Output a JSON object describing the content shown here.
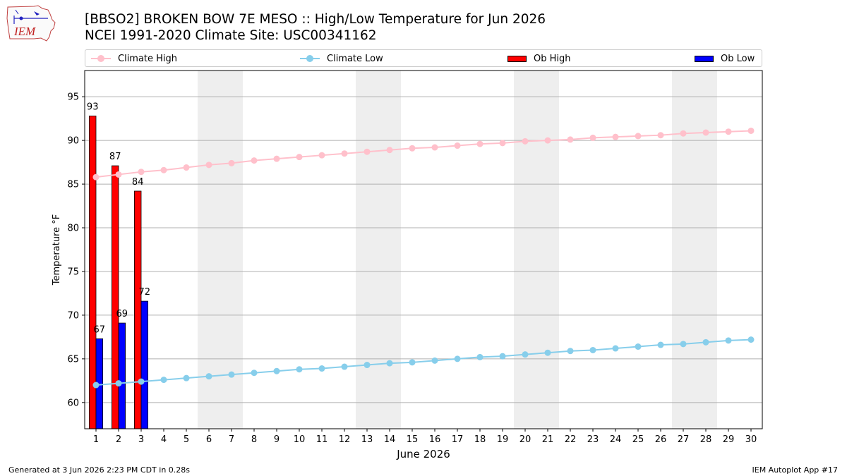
{
  "logo": {
    "text": "IEM"
  },
  "header": {
    "title": "[BBSO2] BROKEN BOW 7E MESO :: High/Low Temperature for Jun 2026",
    "subtitle": "NCEI 1991-2020 Climate Site: USC00341162"
  },
  "legend": {
    "climate_high": "Climate High",
    "climate_low": "Climate Low",
    "ob_high": "Ob High",
    "ob_low": "Ob Low"
  },
  "colors": {
    "climate_high": "#ffc0cb",
    "climate_low": "#87ceeb",
    "ob_high": "#ff0000",
    "ob_low": "#0000ff",
    "weekend_shade": "#eeeeee",
    "grid": "#b0b0b0"
  },
  "chart_data": {
    "type": "bar",
    "xlabel": "June 2026",
    "ylabel": "Temperature °F",
    "xlim": [
      0.5,
      30.5
    ],
    "ylim": [
      57,
      98
    ],
    "yticks": [
      60,
      65,
      70,
      75,
      80,
      85,
      90,
      95
    ],
    "x": [
      1,
      2,
      3,
      4,
      5,
      6,
      7,
      8,
      9,
      10,
      11,
      12,
      13,
      14,
      15,
      16,
      17,
      18,
      19,
      20,
      21,
      22,
      23,
      24,
      25,
      26,
      27,
      28,
      29,
      30
    ],
    "weekend_spans": [
      [
        5.5,
        7.5
      ],
      [
        12.5,
        14.5
      ],
      [
        19.5,
        21.5
      ],
      [
        26.5,
        28.5
      ]
    ],
    "grid": "horizontal",
    "series": [
      {
        "name": "Climate High",
        "type": "line",
        "values": [
          85.8,
          86.1,
          86.4,
          86.6,
          86.9,
          87.2,
          87.4,
          87.7,
          87.9,
          88.1,
          88.3,
          88.5,
          88.7,
          88.9,
          89.1,
          89.2,
          89.4,
          89.6,
          89.7,
          89.9,
          90.0,
          90.1,
          90.3,
          90.4,
          90.5,
          90.6,
          90.8,
          90.9,
          91.0,
          91.1
        ]
      },
      {
        "name": "Climate Low",
        "type": "line",
        "values": [
          62.0,
          62.2,
          62.4,
          62.6,
          62.8,
          63.0,
          63.2,
          63.4,
          63.6,
          63.8,
          63.9,
          64.1,
          64.3,
          64.5,
          64.6,
          64.8,
          65.0,
          65.2,
          65.3,
          65.5,
          65.7,
          65.9,
          66.0,
          66.2,
          66.4,
          66.6,
          66.7,
          66.9,
          67.1,
          67.2
        ]
      },
      {
        "name": "Ob High",
        "type": "bar",
        "x": [
          1,
          2,
          3
        ],
        "values": [
          92.8,
          87.1,
          84.2
        ],
        "labels": [
          "93",
          "87",
          "84"
        ]
      },
      {
        "name": "Ob Low",
        "type": "bar",
        "x": [
          1,
          2,
          3
        ],
        "values": [
          67.3,
          69.1,
          71.6
        ],
        "labels": [
          "67",
          "69",
          "72"
        ]
      }
    ]
  },
  "footer": {
    "generated": "Generated at 3 Jun 2026 2:23 PM CDT in 0.28s",
    "app": "IEM Autoplot App #17"
  }
}
